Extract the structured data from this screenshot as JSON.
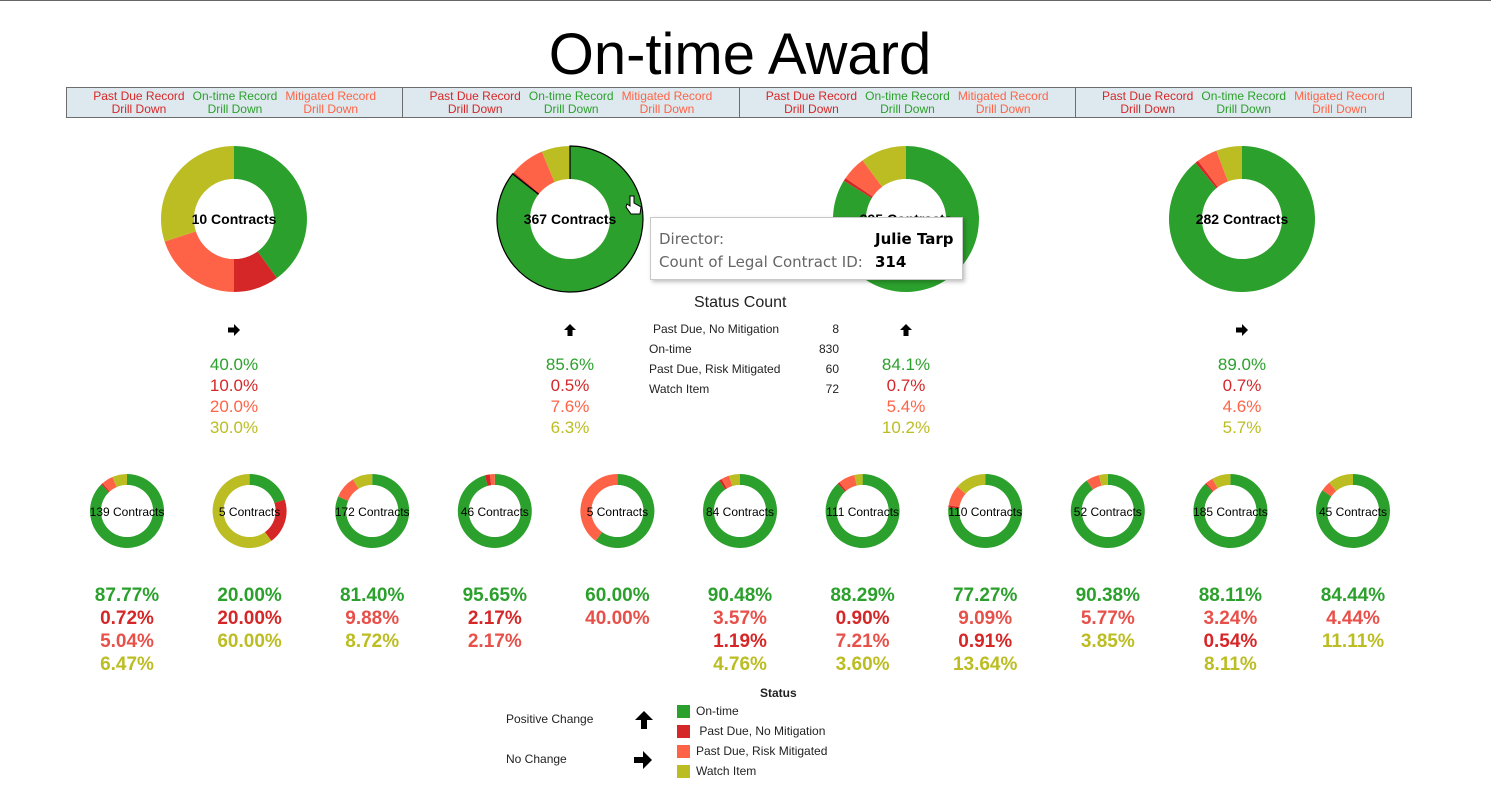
{
  "title": "On-time Award",
  "buttons": [
    [
      {
        "label": "Past Due Record",
        "sub": "Drill Down",
        "cls": "c-due"
      },
      {
        "label": "On-time Record",
        "sub": "Drill Down",
        "cls": "c-on"
      },
      {
        "label": "Mitigated Record",
        "sub": "Drill Down",
        "cls": "c-mit"
      }
    ],
    [
      {
        "label": "Past Due Record",
        "sub": "Drill Down",
        "cls": "c-due"
      },
      {
        "label": "On-time Record",
        "sub": "Drill Down",
        "cls": "c-on"
      },
      {
        "label": "Mitigated Record",
        "sub": "Drill Down",
        "cls": "c-mit"
      }
    ],
    [
      {
        "label": "Past Due Record",
        "sub": "Drill Down",
        "cls": "c-due"
      },
      {
        "label": "On-time Record",
        "sub": "Drill Down",
        "cls": "c-on"
      },
      {
        "label": "Mitigated Record",
        "sub": "Drill Down",
        "cls": "c-mit"
      }
    ],
    [
      {
        "label": "Past Due Record",
        "sub": "Drill Down",
        "cls": "c-due"
      },
      {
        "label": "On-time Record",
        "sub": "Drill Down",
        "cls": "c-on"
      },
      {
        "label": "Mitigated Record",
        "sub": "Drill Down",
        "cls": "c-mit"
      }
    ]
  ],
  "colors": {
    "on_time": "#2ca02c",
    "past_due": "#d62728",
    "mitigated": "#ff6347",
    "watch": "#bcbd22"
  },
  "chart_data": [
    {
      "type": "pie",
      "title": "",
      "slice_order": [
        "On-time",
        "Past Due, No Mitigation",
        "Past Due, Risk Mitigated",
        "Watch Item"
      ],
      "charts": [
        {
          "label": "10 Contracts",
          "values": [
            40.0,
            10.0,
            20.0,
            30.0
          ],
          "pct_labels": [
            "40.0%",
            "10.0%",
            "20.0%",
            "30.0%"
          ],
          "change": "no-change"
        },
        {
          "label": "367 Contracts",
          "values": [
            85.6,
            0.5,
            7.6,
            6.3
          ],
          "pct_labels": [
            "85.6%",
            "0.5%",
            "7.6%",
            "6.3%"
          ],
          "change": "positive",
          "highlighted": true
        },
        {
          "label": "395 Contracts",
          "values": [
            84.1,
            0.7,
            5.4,
            10.2
          ],
          "pct_labels": [
            "84.1%",
            "0.7%",
            "5.4%",
            "10.2%"
          ],
          "change": "positive"
        },
        {
          "label": "282 Contracts",
          "values": [
            89.0,
            0.7,
            4.6,
            5.7
          ],
          "pct_labels": [
            "89.0%",
            "0.7%",
            "4.6%",
            "5.7%"
          ],
          "change": "no-change"
        }
      ]
    },
    {
      "type": "pie",
      "title": "",
      "slice_order": [
        "On-time",
        "Past Due, No Mitigation",
        "Past Due, Risk Mitigated",
        "Watch Item"
      ],
      "charts": [
        {
          "label": "139 Contracts",
          "values": [
            87.77,
            0.72,
            5.04,
            6.47
          ],
          "pct_labels": [
            "87.77%",
            "0.72%",
            "5.04%",
            "6.47%"
          ]
        },
        {
          "label": "5 Contracts",
          "values": [
            20.0,
            20.0,
            0,
            60.0
          ],
          "pct_labels": [
            "20.00%",
            "20.00%",
            "60.00%"
          ]
        },
        {
          "label": "172 Contracts",
          "values": [
            81.4,
            0,
            9.88,
            8.72
          ],
          "pct_labels": [
            "81.40%",
            "9.88%",
            "8.72%"
          ]
        },
        {
          "label": "46 Contracts",
          "values": [
            95.65,
            2.17,
            2.17,
            0
          ],
          "pct_labels": [
            "95.65%",
            "2.17%",
            "2.17%"
          ]
        },
        {
          "label": "5 Contracts",
          "values": [
            60.0,
            0,
            40.0,
            0
          ],
          "pct_labels": [
            "60.00%",
            "40.00%"
          ]
        },
        {
          "label": "84 Contracts",
          "values": [
            90.48,
            1.19,
            3.57,
            4.76
          ],
          "pct_labels": [
            "90.48%",
            "3.57%",
            "1.19%",
            "4.76%"
          ]
        },
        {
          "label": "111 Contracts",
          "values": [
            88.29,
            0.9,
            7.21,
            3.6
          ],
          "pct_labels": [
            "88.29%",
            "0.90%",
            "7.21%",
            "3.60%"
          ]
        },
        {
          "label": "110 Contracts",
          "values": [
            77.27,
            0.91,
            9.09,
            13.64
          ],
          "pct_labels": [
            "77.27%",
            "9.09%",
            "0.91%",
            "13.64%"
          ]
        },
        {
          "label": "52 Contracts",
          "values": [
            90.38,
            0,
            5.77,
            3.85
          ],
          "pct_labels": [
            "90.38%",
            "5.77%",
            "3.85%"
          ]
        },
        {
          "label": "185 Contracts",
          "values": [
            88.11,
            0.54,
            3.24,
            8.11
          ],
          "pct_labels": [
            "88.11%",
            "3.24%",
            "0.54%",
            "8.11%"
          ]
        },
        {
          "label": "45 Contracts",
          "values": [
            84.44,
            0,
            4.44,
            11.11
          ],
          "pct_labels": [
            "84.44%",
            "4.44%",
            "11.11%"
          ]
        }
      ]
    }
  ],
  "tooltip": {
    "k1": "Director:",
    "v1": "Julie Tarp",
    "k2": "Count of Legal Contract ID:",
    "v2": "314"
  },
  "status_count": {
    "title": "Status Count",
    "rows": [
      {
        "label": "Past Due, No Mitigation",
        "value": "8"
      },
      {
        "label": "On-time",
        "value": "830"
      },
      {
        "label": "Past Due, Risk Mitigated",
        "value": "60"
      },
      {
        "label": "Watch Item",
        "value": "72"
      }
    ]
  },
  "legend": {
    "title": "Status",
    "items": [
      "On-time",
      " Past Due, No Mitigation",
      "Past Due, Risk Mitigated",
      "Watch Item"
    ],
    "positive_change": "Positive Change",
    "no_change": "No Change"
  }
}
